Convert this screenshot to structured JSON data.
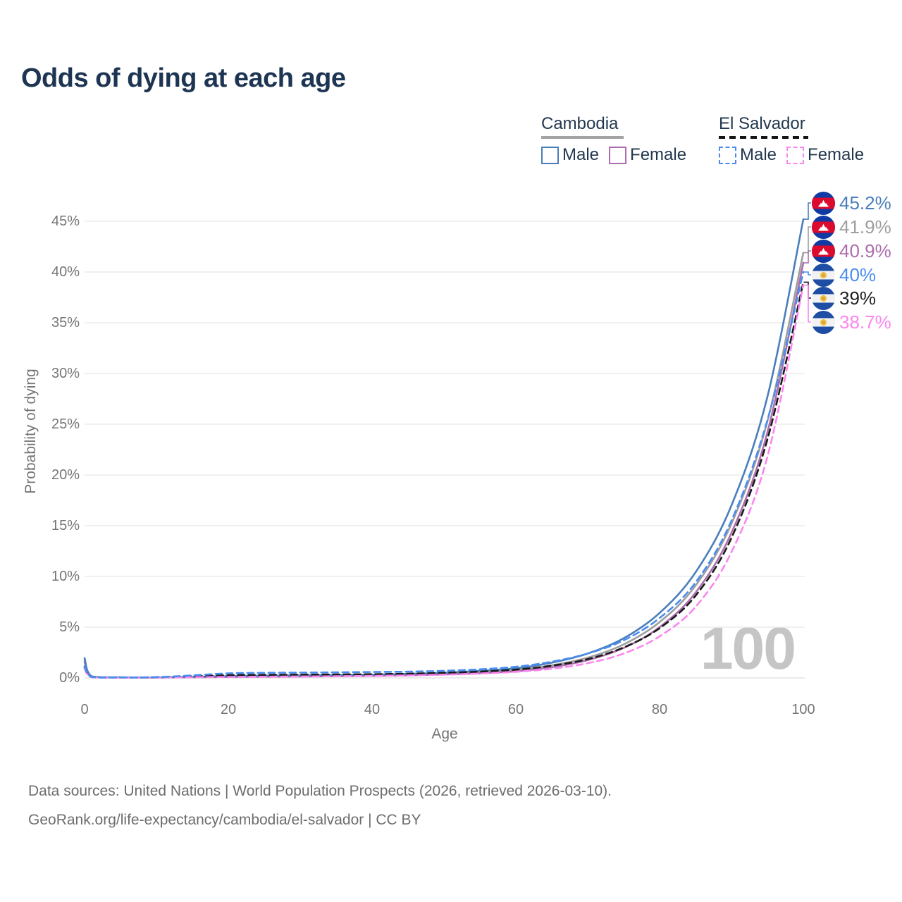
{
  "title": "Odds of dying at each age",
  "watermark": "100",
  "legend": {
    "groups": [
      {
        "country": "Cambodia",
        "underline_style": "solid",
        "underline_color": "#a3a3a3",
        "underline_width": 117,
        "items": [
          {
            "label": "Male",
            "color": "#4a7ebb",
            "dashed": false
          },
          {
            "label": "Female",
            "color": "#ad6cad",
            "dashed": false
          }
        ]
      },
      {
        "country": "El Salvador",
        "underline_style": "dashed",
        "underline_color": "#141414",
        "underline_width": 127,
        "items": [
          {
            "label": "Male",
            "color": "#4a8df0",
            "dashed": true
          },
          {
            "label": "Female",
            "color": "#fa86ef",
            "dashed": true
          }
        ]
      }
    ]
  },
  "chart_data": {
    "type": "line",
    "title": "Odds of dying at each age",
    "xlabel": "Age",
    "ylabel": "Probability of dying",
    "xlim": [
      0,
      100
    ],
    "ylim": [
      0,
      47
    ],
    "xticks": [
      0,
      20,
      40,
      60,
      80,
      100
    ],
    "yticks": [
      0,
      5,
      10,
      15,
      20,
      25,
      30,
      35,
      40,
      45
    ],
    "ytick_suffix": "%",
    "grid": "horizontal",
    "legend_position": "top-right",
    "x": [
      0,
      1,
      5,
      10,
      15,
      20,
      25,
      30,
      35,
      40,
      45,
      50,
      55,
      60,
      65,
      70,
      75,
      80,
      85,
      90,
      95,
      100
    ],
    "series": [
      {
        "id": "cambodia-both",
        "name": "Cambodia",
        "color": "#9e9e9e",
        "label_color": "#9e9e9e",
        "dash": "solid",
        "flag": "kh",
        "end_label": "41.9%",
        "end_value": 41.9,
        "values": [
          1.75,
          0.13,
          0.05,
          0.04,
          0.08,
          0.14,
          0.17,
          0.19,
          0.22,
          0.26,
          0.32,
          0.42,
          0.56,
          0.78,
          1.25,
          2.0,
          3.3,
          5.5,
          9.1,
          15.2,
          25.3,
          41.9
        ]
      },
      {
        "id": "cambodia-female",
        "name": "Cambodia Female",
        "color": "#ad6cad",
        "label_color": "#ad6cad",
        "dash": "solid",
        "flag": "kh",
        "end_label": "40.9%",
        "end_value": 40.9,
        "values": [
          1.55,
          0.12,
          0.05,
          0.04,
          0.06,
          0.1,
          0.12,
          0.14,
          0.17,
          0.2,
          0.26,
          0.34,
          0.46,
          0.65,
          1.05,
          1.75,
          2.95,
          5.0,
          8.4,
          14.3,
          24.2,
          40.9
        ]
      },
      {
        "id": "cambodia-male",
        "name": "Cambodia Male",
        "color": "#4a7ebb",
        "label_color": "#4a7ebb",
        "dash": "solid",
        "flag": "kh",
        "end_label": "45.2%",
        "end_value": 45.2,
        "values": [
          1.95,
          0.15,
          0.06,
          0.05,
          0.1,
          0.18,
          0.22,
          0.25,
          0.28,
          0.32,
          0.4,
          0.52,
          0.7,
          0.95,
          1.5,
          2.4,
          3.9,
          6.4,
          10.4,
          17.0,
          27.7,
          45.2
        ]
      },
      {
        "id": "elsalvador-both",
        "name": "El Salvador",
        "color": "#1a1a1a",
        "label_color": "#1f1f1f",
        "dash": "dashed",
        "flag": "sv",
        "end_label": "39%",
        "end_value": 39.0,
        "values": [
          1.0,
          0.08,
          0.04,
          0.05,
          0.15,
          0.27,
          0.3,
          0.32,
          0.34,
          0.37,
          0.42,
          0.5,
          0.62,
          0.82,
          1.2,
          1.85,
          3.0,
          4.9,
          8.1,
          13.8,
          23.5,
          39.0
        ]
      },
      {
        "id": "elsalvador-female",
        "name": "El Salvador Female",
        "color": "#fa86ef",
        "label_color": "#fa86ef",
        "dash": "dashed",
        "flag": "sv",
        "end_label": "38.7%",
        "end_value": 38.7,
        "values": [
          0.9,
          0.07,
          0.03,
          0.04,
          0.07,
          0.1,
          0.12,
          0.14,
          0.17,
          0.2,
          0.25,
          0.32,
          0.43,
          0.6,
          0.9,
          1.45,
          2.4,
          4.1,
          7.0,
          12.4,
          21.8,
          38.7
        ]
      },
      {
        "id": "elsalvador-male",
        "name": "El Salvador Male",
        "color": "#4a8df0",
        "label_color": "#4a8df0",
        "dash": "dashed",
        "flag": "sv",
        "end_label": "40%",
        "end_value": 40.0,
        "values": [
          1.15,
          0.1,
          0.05,
          0.08,
          0.25,
          0.45,
          0.5,
          0.52,
          0.55,
          0.58,
          0.62,
          0.7,
          0.85,
          1.1,
          1.6,
          2.4,
          3.7,
          5.9,
          9.4,
          15.5,
          25.4,
          40.0
        ]
      }
    ],
    "endpoint_label_order": [
      "cambodia-male",
      "cambodia-both",
      "cambodia-female",
      "elsalvador-male",
      "elsalvador-both",
      "elsalvador-female"
    ]
  },
  "flags": {
    "kh": {
      "name": "cambodia-flag",
      "band_color": "#0f3aa3",
      "middle_color": "#dc0a2d",
      "emblem_color": "#ffffff"
    },
    "sv": {
      "name": "el-salvador-flag",
      "band_color": "#1d4ea3",
      "middle_color": "#f2f2f2",
      "emblem_color": "#eec14a"
    }
  },
  "footer": {
    "line1": "Data sources: United Nations | World Population Prospects (2026, retrieved 2026-03-10).",
    "line2": "GeoRank.org/life-expectancy/cambodia/el-salvador | CC BY"
  }
}
